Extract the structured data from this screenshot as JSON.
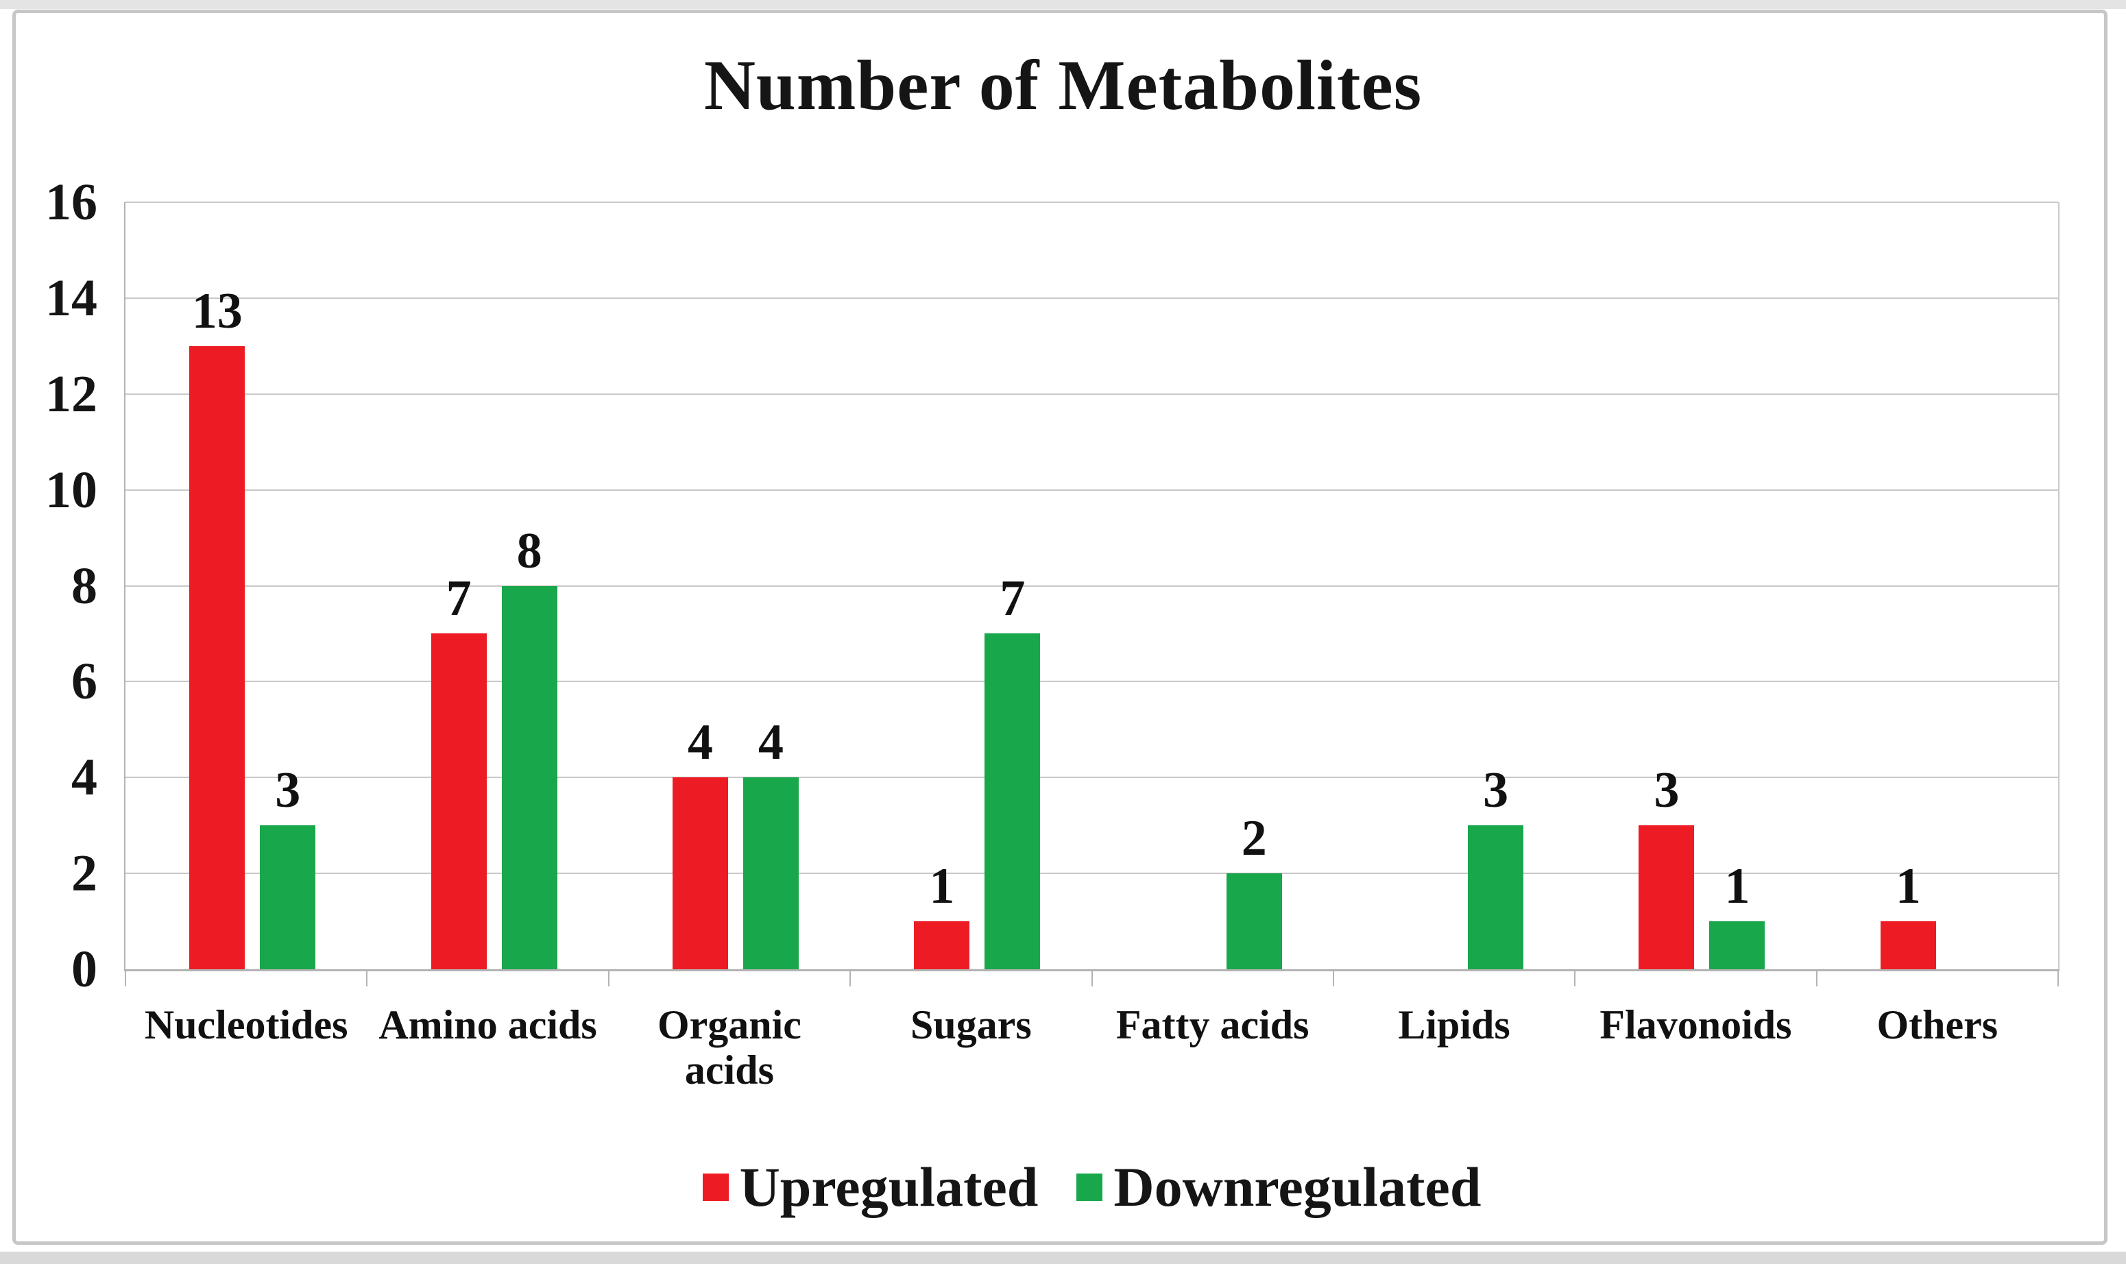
{
  "chart_data": {
    "type": "bar",
    "title": "Number of Metabolites",
    "categories": [
      "Nucleotides",
      "Amino acids",
      "Organic acids",
      "Sugars",
      "Fatty acids",
      "Lipids",
      "Flavonoids",
      "Others"
    ],
    "series": [
      {
        "name": "Upregulated",
        "color": "#ED1C24",
        "values": [
          13,
          7,
          4,
          1,
          0,
          0,
          3,
          1
        ]
      },
      {
        "name": "Downregulated",
        "color": "#19A74B",
        "values": [
          3,
          8,
          4,
          7,
          2,
          3,
          1,
          0
        ]
      }
    ],
    "xlabel": "",
    "ylabel": "",
    "ylim": [
      0,
      16
    ],
    "yticks": [
      0,
      2,
      4,
      6,
      8,
      10,
      12,
      14,
      16
    ],
    "grid": "horizontal",
    "legend_position": "bottom-center",
    "data_labels": "shown above bars, zero values omitted"
  },
  "colors": {
    "grid": "#c9c9c9",
    "axis": "#b3b3b3",
    "frame_border": "#c7c7c7",
    "text": "#151515"
  }
}
